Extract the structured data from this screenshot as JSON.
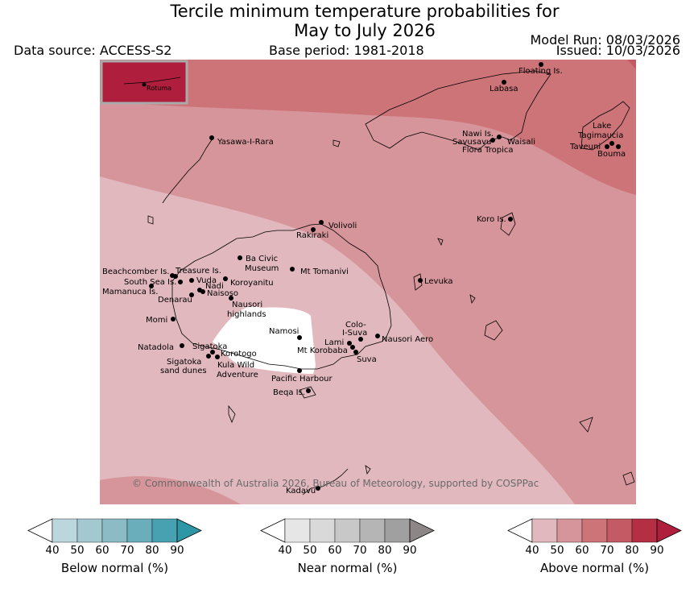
{
  "title": {
    "line1": "Tercile minimum temperature probabilities for",
    "line2": "May to July 2026"
  },
  "header": {
    "data_source": "Data source: ACCESS-S2",
    "base_period": "Base period: 1981-2018",
    "model_run": "Model Run: 08/03/2026",
    "issued": "Issued: 10/03/2026"
  },
  "inset": {
    "label": "Rotuma"
  },
  "places": [
    {
      "name": "Floating Is."
    },
    {
      "name": "Labasa"
    },
    {
      "name": "Yasawa-I-Rara"
    },
    {
      "name": "Nawi Is."
    },
    {
      "name": "Savusavu"
    },
    {
      "name": "Waisali"
    },
    {
      "name": "Flora Tropica"
    },
    {
      "name": "Lake"
    },
    {
      "name": "Tagimaucia"
    },
    {
      "name": "Taveuni"
    },
    {
      "name": "Bouma"
    },
    {
      "name": "Koro Is."
    },
    {
      "name": "Volivoli"
    },
    {
      "name": "Rakiraki"
    },
    {
      "name": "Ba Civic"
    },
    {
      "name": "Museum"
    },
    {
      "name": "Mt Tomanivi"
    },
    {
      "name": "Beachcomber Is."
    },
    {
      "name": "Treasure Is."
    },
    {
      "name": "South Sea Is."
    },
    {
      "name": "Vuda"
    },
    {
      "name": "Koroyanitu"
    },
    {
      "name": "Mamanuca Is."
    },
    {
      "name": "Nadi"
    },
    {
      "name": "Naisoso"
    },
    {
      "name": "Denarau"
    },
    {
      "name": "Levuka"
    },
    {
      "name": "Nausori"
    },
    {
      "name": "highlands"
    },
    {
      "name": "Momi"
    },
    {
      "name": "Namosi"
    },
    {
      "name": "Colo-"
    },
    {
      "name": "I-Suva"
    },
    {
      "name": "Lami"
    },
    {
      "name": "Nausori Aero"
    },
    {
      "name": "Mt Korobaba"
    },
    {
      "name": "Natadola"
    },
    {
      "name": "Sigatoka"
    },
    {
      "name": "Korotogo"
    },
    {
      "name": "Suva"
    },
    {
      "name": "Sigatoka"
    },
    {
      "name": "sand dunes"
    },
    {
      "name": "Kula Wild"
    },
    {
      "name": "Adventure"
    },
    {
      "name": "Pacific Harbour"
    },
    {
      "name": "Beqa Is."
    },
    {
      "name": "Kadavu"
    }
  ],
  "copyright": "© Commonwealth of Australia 2026, Bureau of Meteorology, supported by COSPPac",
  "legend_ticks": [
    "40",
    "50",
    "60",
    "70",
    "80",
    "90"
  ],
  "colorbars": [
    {
      "label": "Below normal (%)",
      "colors": [
        "#ffffff",
        "#bcd6dd",
        "#a3c8cf",
        "#8bbbc4",
        "#6baebb",
        "#48a1b0",
        "#2e97a6"
      ]
    },
    {
      "label": "Near normal (%)",
      "colors": [
        "#ffffff",
        "#e6e6e6",
        "#d9d9d9",
        "#c8c8c8",
        "#b5b5b5",
        "#a0a0a0",
        "#8c8686"
      ]
    },
    {
      "label": "Above normal (%)",
      "colors": [
        "#ffffff",
        "#e1b8bd",
        "#d6959b",
        "#cd7479",
        "#c45a63",
        "#b42e44",
        "#b01e3d"
      ]
    }
  ]
}
